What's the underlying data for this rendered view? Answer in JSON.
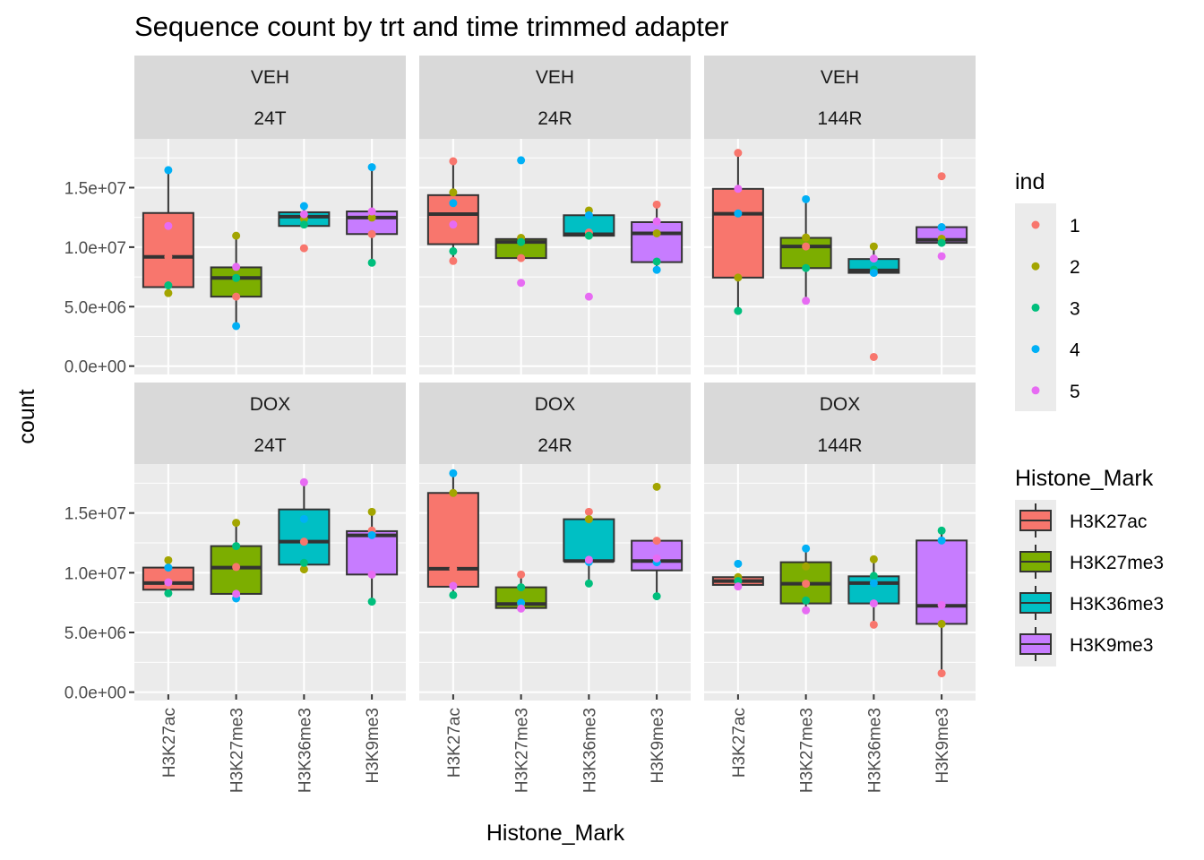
{
  "chart_data": {
    "type": "boxplot",
    "title": "Sequence count by trt and time trimmed adapter",
    "xlabel": "Histone_Mark",
    "ylabel": "count",
    "ylim": [
      -700000,
      19100000
    ],
    "yticks": [
      0,
      5000000,
      10000000,
      15000000
    ],
    "ytick_labels": [
      "0.0e+00",
      "5.0e+06",
      "1.0e+07",
      "1.5e+07"
    ],
    "grid": true,
    "categories": [
      "H3K27ac",
      "H3K27me3",
      "H3K36me3",
      "H3K9me3"
    ],
    "fill_colors": {
      "H3K27ac": "#F8766D",
      "H3K27me3": "#7CAE00",
      "H3K36me3": "#00BFC4",
      "H3K9me3": "#C77CFF"
    },
    "point_colors": {
      "1": "#F8766D",
      "2": "#A3A500",
      "3": "#00BF7D",
      "4": "#00B0F6",
      "5": "#E76BF3"
    },
    "legend_ind": {
      "title": "ind",
      "entries": [
        "1",
        "2",
        "3",
        "4",
        "5"
      ],
      "placement": "right"
    },
    "legend_fill": {
      "title": "Histone_Mark",
      "entries": [
        "H3K27ac",
        "H3K27me3",
        "H3K36me3",
        "H3K9me3"
      ],
      "placement": "right"
    },
    "facets": [
      {
        "trt": "VEH",
        "time": "24T",
        "boxes": [
          {
            "category": "H3K27ac",
            "min": 6140000,
            "q1": 6640000,
            "median": 9180000,
            "q3": 12870000,
            "max": 16470000
          },
          {
            "category": "H3K27me3",
            "min": 3370000,
            "q1": 5840000,
            "median": 7410000,
            "q3": 8300000,
            "max": 10960000
          },
          {
            "category": "H3K36me3",
            "min": 11780000,
            "q1": 11780000,
            "median": 12560000,
            "q3": 12930000,
            "max": 13450000
          },
          {
            "category": "H3K9me3",
            "min": 8690000,
            "q1": 11100000,
            "median": 12480000,
            "q3": 13000000,
            "max": 16720000
          }
        ],
        "outliers": [
          {
            "category": "H3K36me3",
            "ind": "1",
            "value": 9910000
          }
        ],
        "points": [
          {
            "category": "H3K27ac",
            "values": {
              "1": 9180000,
              "2": 6140000,
              "3": 6790000,
              "4": 16470000,
              "5": 11780000
            }
          },
          {
            "category": "H3K27me3",
            "values": {
              "1": 5840000,
              "2": 10960000,
              "3": 7410000,
              "4": 3370000,
              "5": 8340000
            }
          },
          {
            "category": "H3K36me3",
            "values": {
              "1": 9910000,
              "2": 12360000,
              "3": 11900000,
              "4": 13450000,
              "5": 12760000
            }
          },
          {
            "category": "H3K9me3",
            "values": {
              "1": 11100000,
              "2": 12480000,
              "3": 8690000,
              "4": 16720000,
              "5": 13000000
            }
          }
        ]
      },
      {
        "trt": "VEH",
        "time": "24R",
        "boxes": [
          {
            "category": "H3K27ac",
            "min": 8840000,
            "q1": 10250000,
            "median": 12780000,
            "q3": 14370000,
            "max": 17220000
          },
          {
            "category": "H3K27me3",
            "min": 9080000,
            "q1": 9080000,
            "median": 10430000,
            "q3": 10680000,
            "max": 10780000
          },
          {
            "category": "H3K36me3",
            "min": 10960000,
            "q1": 10960000,
            "median": 11080000,
            "q3": 12680000,
            "max": 13080000
          },
          {
            "category": "H3K9me3",
            "min": 8090000,
            "q1": 8740000,
            "median": 11160000,
            "q3": 12100000,
            "max": 13580000
          }
        ],
        "outliers": [],
        "points": [
          {
            "category": "H3K27ac",
            "values": {
              "1": 17220000,
              "2": 14600000,
              "3": 9660000,
              "4": 13700000,
              "5": 11900000
            },
            "extra": [
              {
                "ind": "1",
                "value": 8840000
              }
            ]
          },
          {
            "category": "H3K27me3",
            "values": {
              "1": 9080000,
              "2": 10780000,
              "3": 10430000,
              "4": 17300000,
              "5": 7000000
            }
          },
          {
            "category": "H3K36me3",
            "values": {
              "1": 11230000,
              "2": 13080000,
              "3": 10960000,
              "4": 12680000,
              "5": 5840000
            }
          },
          {
            "category": "H3K9me3",
            "values": {
              "1": 13580000,
              "2": 11160000,
              "3": 8790000,
              "4": 8090000,
              "5": 12160000
            }
          }
        ]
      },
      {
        "trt": "VEH",
        "time": "144R",
        "boxes": [
          {
            "category": "H3K27ac",
            "min": 4640000,
            "q1": 7440000,
            "median": 12800000,
            "q3": 14900000,
            "max": 17920000
          },
          {
            "category": "H3K27me3",
            "min": 5490000,
            "q1": 8240000,
            "median": 10060000,
            "q3": 10780000,
            "max": 14030000
          },
          {
            "category": "H3K36me3",
            "min": 7840000,
            "q1": 7840000,
            "median": 8040000,
            "q3": 9000000,
            "max": 10060000
          },
          {
            "category": "H3K9me3",
            "min": 10360000,
            "q1": 10360000,
            "median": 10610000,
            "q3": 11680000,
            "max": 11680000
          }
        ],
        "outliers": [],
        "points": [
          {
            "category": "H3K27ac",
            "values": {
              "1": 17920000,
              "2": 7440000,
              "3": 4640000,
              "4": 12830000,
              "5": 14900000
            }
          },
          {
            "category": "H3K27me3",
            "values": {
              "1": 10060000,
              "2": 10810000,
              "3": 8240000,
              "4": 14030000,
              "5": 5490000
            }
          },
          {
            "category": "H3K36me3",
            "values": {
              "1": 770000,
              "2": 10060000,
              "3": 8110000,
              "4": 7840000,
              "5": 9040000
            }
          },
          {
            "category": "H3K9me3",
            "values": {
              "1": 15960000,
              "2": 10710000,
              "3": 10360000,
              "4": 11680000,
              "5": 9240000
            }
          }
        ]
      },
      {
        "trt": "DOX",
        "time": "24T",
        "boxes": [
          {
            "category": "H3K27ac",
            "min": 8280000,
            "q1": 8580000,
            "median": 9130000,
            "q3": 10430000,
            "max": 11050000
          },
          {
            "category": "H3K27me3",
            "min": 7850000,
            "q1": 8230000,
            "median": 10430000,
            "q3": 12230000,
            "max": 14180000
          },
          {
            "category": "H3K36me3",
            "min": 10280000,
            "q1": 10680000,
            "median": 12600000,
            "q3": 15300000,
            "max": 17580000
          },
          {
            "category": "H3K9me3",
            "min": 7580000,
            "q1": 9850000,
            "median": 13130000,
            "q3": 13480000,
            "max": 15100000
          }
        ],
        "outliers": [],
        "points": [
          {
            "category": "H3K27ac",
            "values": {
              "1": 8930000,
              "2": 11050000,
              "3": 8280000,
              "4": 10430000,
              "5": 9200000
            }
          },
          {
            "category": "H3K27me3",
            "values": {
              "1": 10480000,
              "2": 14180000,
              "3": 12230000,
              "4": 7850000,
              "5": 8230000
            }
          },
          {
            "category": "H3K36me3",
            "values": {
              "1": 12600000,
              "2": 10280000,
              "3": 10830000,
              "4": 14500000,
              "5": 17580000
            }
          },
          {
            "category": "H3K9me3",
            "values": {
              "1": 13530000,
              "2": 15100000,
              "3": 7580000,
              "4": 13150000,
              "5": 9850000
            }
          }
        ]
      },
      {
        "trt": "DOX",
        "time": "24R",
        "boxes": [
          {
            "category": "H3K27ac",
            "min": 8130000,
            "q1": 8830000,
            "median": 10330000,
            "q3": 16680000,
            "max": 18330000
          },
          {
            "category": "H3K27me3",
            "min": 7000000,
            "q1": 7050000,
            "median": 7380000,
            "q3": 8780000,
            "max": 9850000
          },
          {
            "category": "H3K36me3",
            "min": 9100000,
            "q1": 10980000,
            "median": 10980000,
            "q3": 14480000,
            "max": 15100000
          },
          {
            "category": "H3K9me3",
            "min": 8030000,
            "q1": 10200000,
            "median": 10980000,
            "q3": 12680000,
            "max": 12680000
          }
        ],
        "outliers": [
          {
            "category": "H3K9me3",
            "ind": "2",
            "value": 17200000
          }
        ],
        "points": [
          {
            "category": "H3K27ac",
            "values": {
              "1": 10330000,
              "2": 16680000,
              "3": 8130000,
              "4": 18330000,
              "5": 8900000
            }
          },
          {
            "category": "H3K27me3",
            "values": {
              "1": 9850000,
              "2": 7380000,
              "3": 8780000,
              "4": 7480000,
              "5": 7000000
            }
          },
          {
            "category": "H3K36me3",
            "values": {
              "1": 15100000,
              "2": 14480000,
              "3": 9100000,
              "4": 10900000,
              "5": 11080000
            }
          },
          {
            "category": "H3K9me3",
            "values": {
              "1": 12680000,
              "2": 17200000,
              "3": 8030000,
              "4": 10880000,
              "5": 11200000
            }
          }
        ]
      },
      {
        "trt": "DOX",
        "time": "144R",
        "boxes": [
          {
            "category": "H3K27ac",
            "min": 8980000,
            "q1": 8980000,
            "median": 9300000,
            "q3": 9630000,
            "max": 9630000
          },
          {
            "category": "H3K27me3",
            "min": 6850000,
            "q1": 7430000,
            "median": 9080000,
            "q3": 10880000,
            "max": 12030000
          },
          {
            "category": "H3K36me3",
            "min": 5650000,
            "q1": 7430000,
            "median": 9130000,
            "q3": 9700000,
            "max": 11130000
          },
          {
            "category": "H3K9me3",
            "min": 1580000,
            "q1": 5720000,
            "median": 7230000,
            "q3": 12700000,
            "max": 13530000
          }
        ],
        "outliers": [
          {
            "category": "H3K27ac",
            "ind": "4",
            "value": 10750000
          },
          {
            "category": "H3K27ac",
            "ind": "5",
            "value": 8850000
          }
        ],
        "points": [
          {
            "category": "H3K27ac",
            "values": {
              "1": 9480000,
              "2": 9630000,
              "3": 9300000,
              "4": 10750000,
              "5": 8850000
            }
          },
          {
            "category": "H3K27me3",
            "values": {
              "1": 9080000,
              "2": 10530000,
              "3": 7680000,
              "4": 12030000,
              "5": 6850000
            }
          },
          {
            "category": "H3K36me3",
            "values": {
              "1": 5650000,
              "2": 11130000,
              "3": 9730000,
              "4": 9130000,
              "5": 7430000
            }
          },
          {
            "category": "H3K9me3",
            "values": {
              "1": 1580000,
              "2": 5720000,
              "3": 13530000,
              "4": 12700000,
              "5": 7300000
            }
          }
        ]
      }
    ]
  }
}
